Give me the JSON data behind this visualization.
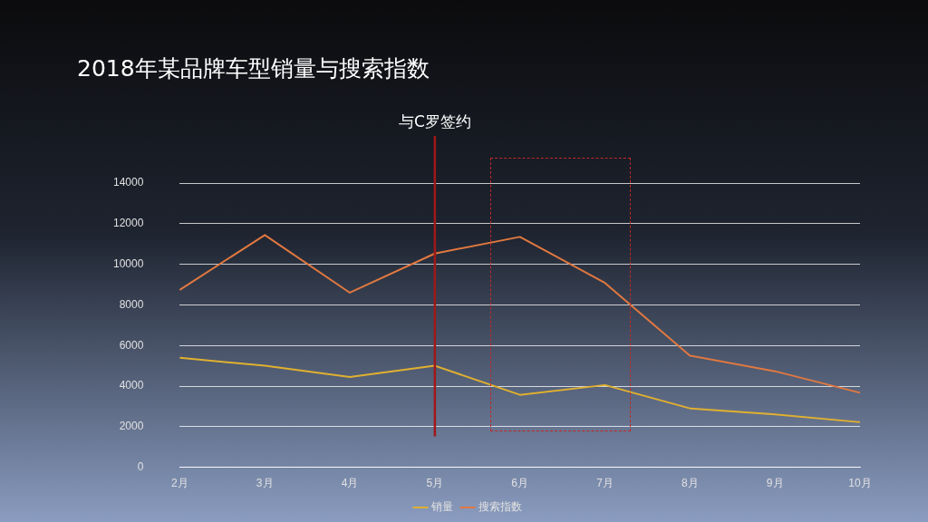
{
  "chart_data": {
    "type": "line",
    "title": "2018年某品牌车型销量与搜索指数",
    "categories": [
      "2月",
      "3月",
      "4月",
      "5月",
      "6月",
      "7月",
      "8月",
      "9月",
      "10月"
    ],
    "series": [
      {
        "name": "销量",
        "color": "#e0b030",
        "values": [
          5400,
          5000,
          4450,
          5000,
          3570,
          4050,
          2900,
          2600,
          2220
        ]
      },
      {
        "name": "搜索指数",
        "color": "#e07840",
        "values": [
          8740,
          11440,
          8600,
          10530,
          11350,
          9080,
          5500,
          4730,
          3670
        ]
      }
    ],
    "ylim": [
      0,
      14000
    ],
    "yticks": [
      0,
      2000,
      4000,
      6000,
      8000,
      10000,
      12000,
      14000
    ],
    "grid": "y",
    "legend": "bottom",
    "marker": "none",
    "line_style": "solid",
    "ref_lines": [
      {
        "axis": "x",
        "value": "5月",
        "label": "与C罗签约",
        "color": "#a01818"
      }
    ]
  }
}
